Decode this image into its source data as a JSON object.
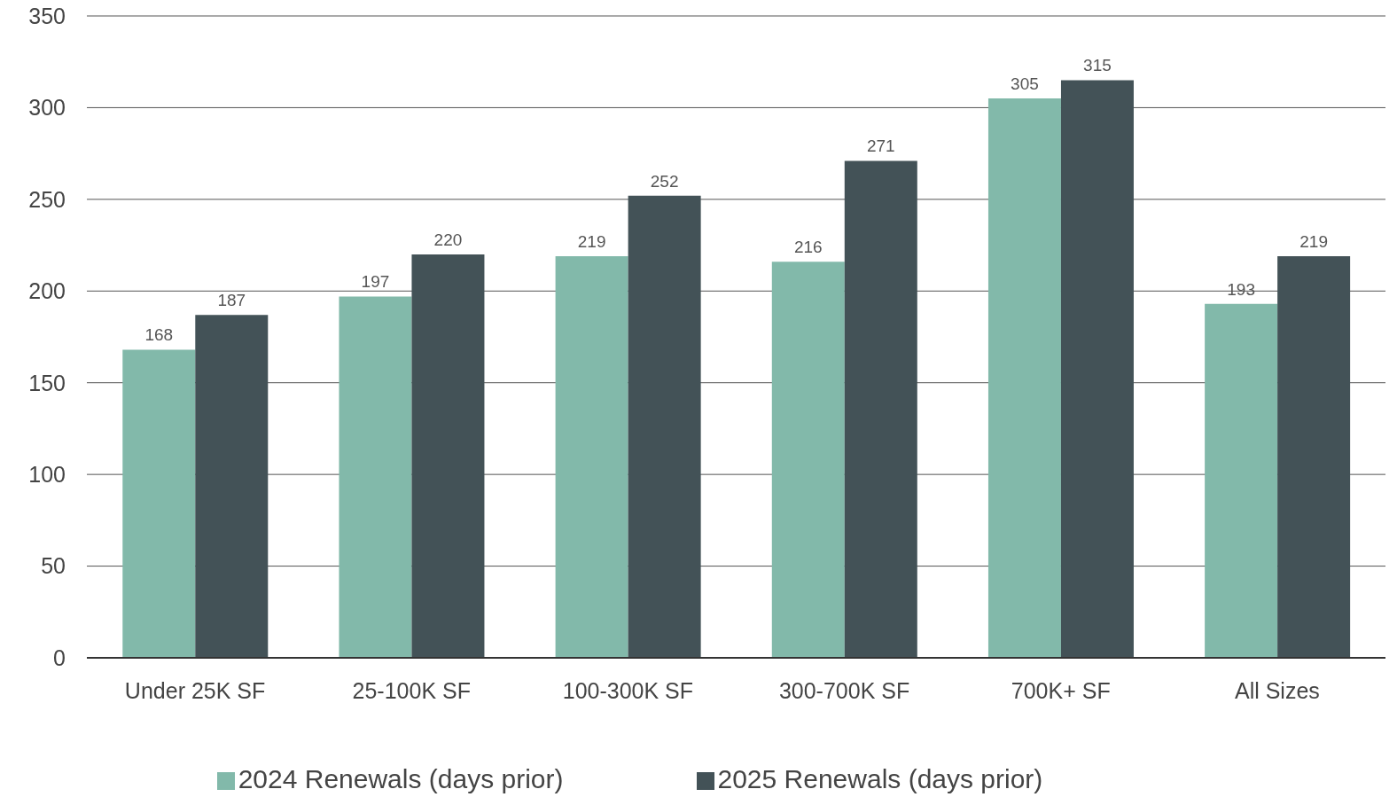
{
  "chart_data": {
    "type": "bar",
    "categories": [
      "Under 25K SF",
      "25-100K SF",
      "100-300K SF",
      "300-700K SF",
      "700K+ SF",
      "All Sizes"
    ],
    "series": [
      {
        "name": "2024 Renewals (days prior)",
        "color": "#82b9aa",
        "values": [
          168,
          197,
          219,
          216,
          305,
          193
        ]
      },
      {
        "name": "2025 Renewals (days prior)",
        "color": "#435257",
        "values": [
          187,
          220,
          252,
          271,
          315,
          219
        ]
      }
    ],
    "ylim": [
      0,
      350
    ],
    "yticks": [
      0,
      50,
      100,
      150,
      200,
      250,
      300,
      350
    ],
    "grid": "y",
    "legend": "bottom",
    "data_labels": true
  }
}
